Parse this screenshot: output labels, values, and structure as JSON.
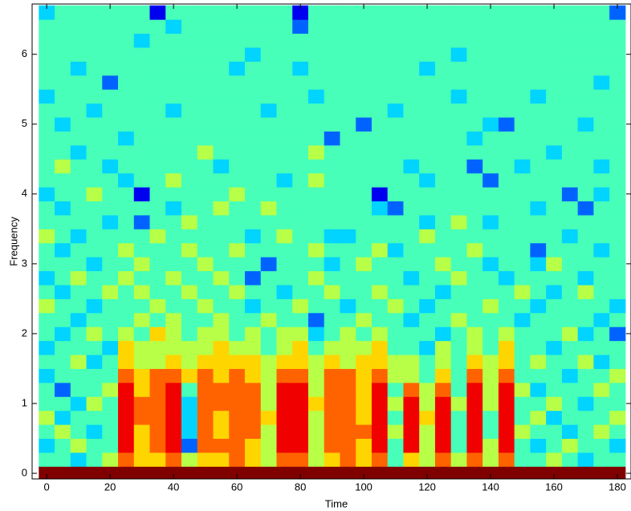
{
  "chart_data": {
    "type": "heatmap",
    "xlabel": "Time",
    "ylabel": "Frequency",
    "x": [
      0,
      5,
      10,
      15,
      20,
      25,
      30,
      35,
      40,
      45,
      50,
      55,
      60,
      65,
      70,
      75,
      80,
      85,
      90,
      95,
      100,
      105,
      110,
      115,
      120,
      125,
      130,
      135,
      140,
      145,
      150,
      155,
      160,
      165,
      170,
      175,
      180
    ],
    "y": [
      0,
      0.2,
      0.4,
      0.6,
      0.8,
      1,
      1.2,
      1.4,
      1.6,
      1.8,
      2,
      2.2,
      2.4,
      2.6,
      2.8,
      3,
      3.2,
      3.4,
      3.6,
      3.8,
      4,
      4.2,
      4.4,
      4.6,
      4.8,
      5,
      5.2,
      5.4,
      5.6,
      5.8,
      6,
      6.2,
      6.4,
      6.6
    ],
    "zlim": [
      0,
      9
    ],
    "colormap": "jet",
    "z": [
      [
        9,
        9,
        9,
        9,
        9,
        9,
        9,
        9,
        9,
        9,
        9,
        9,
        9,
        9,
        9,
        9,
        9,
        9,
        9,
        9,
        9,
        9,
        9,
        9,
        9,
        9,
        9,
        9,
        9,
        9,
        9,
        9,
        9,
        9,
        9,
        9,
        9
      ],
      [
        4,
        4,
        3,
        4,
        5,
        7,
        6,
        6,
        7,
        5,
        6,
        6,
        7,
        6,
        5,
        7,
        7,
        5,
        6,
        7,
        6,
        7,
        4,
        6,
        5,
        7,
        5,
        7,
        5,
        7,
        4,
        4,
        5,
        4,
        3,
        4,
        4
      ],
      [
        3,
        4,
        5,
        4,
        4,
        8,
        6,
        7,
        8,
        2,
        7,
        7,
        7,
        6,
        5,
        8,
        8,
        5,
        7,
        7,
        6,
        8,
        4,
        8,
        5,
        8,
        4,
        8,
        5,
        8,
        4,
        3,
        4,
        5,
        4,
        4,
        3
      ],
      [
        4,
        5,
        4,
        3,
        4,
        8,
        6,
        7,
        8,
        3,
        7,
        6,
        7,
        7,
        5,
        8,
        8,
        5,
        7,
        7,
        7,
        8,
        5,
        8,
        5,
        8,
        4,
        8,
        4,
        8,
        5,
        4,
        4,
        3,
        4,
        5,
        4
      ],
      [
        5,
        3,
        4,
        4,
        4,
        8,
        7,
        7,
        8,
        3,
        7,
        6,
        7,
        7,
        6,
        8,
        8,
        5,
        7,
        7,
        6,
        8,
        4,
        8,
        6,
        8,
        4,
        8,
        4,
        8,
        4,
        5,
        3,
        4,
        4,
        4,
        5
      ],
      [
        4,
        4,
        3,
        5,
        4,
        8,
        7,
        7,
        8,
        3,
        7,
        7,
        7,
        7,
        5,
        8,
        8,
        6,
        7,
        7,
        6,
        8,
        5,
        8,
        5,
        8,
        5,
        8,
        5,
        8,
        4,
        4,
        5,
        4,
        3,
        4,
        4
      ],
      [
        4,
        2,
        4,
        4,
        5,
        8,
        6,
        7,
        8,
        4,
        7,
        7,
        7,
        7,
        5,
        8,
        8,
        5,
        7,
        7,
        6,
        8,
        4,
        7,
        5,
        7,
        4,
        8,
        5,
        8,
        5,
        3,
        4,
        4,
        4,
        5,
        4
      ],
      [
        3,
        4,
        4,
        4,
        4,
        7,
        6,
        7,
        7,
        6,
        7,
        6,
        7,
        6,
        5,
        7,
        7,
        5,
        7,
        7,
        6,
        7,
        5,
        5,
        4,
        6,
        4,
        7,
        5,
        7,
        4,
        4,
        4,
        3,
        4,
        4,
        5
      ],
      [
        4,
        4,
        5,
        3,
        4,
        6,
        5,
        5,
        6,
        5,
        6,
        6,
        6,
        6,
        5,
        6,
        6,
        5,
        6,
        5,
        6,
        6,
        5,
        5,
        4,
        5,
        4,
        6,
        5,
        6,
        4,
        5,
        4,
        4,
        5,
        3,
        4
      ],
      [
        3,
        4,
        4,
        4,
        3,
        6,
        5,
        5,
        5,
        5,
        5,
        6,
        5,
        5,
        4,
        5,
        6,
        4,
        5,
        5,
        5,
        6,
        4,
        4,
        3,
        5,
        4,
        5,
        4,
        6,
        4,
        4,
        3,
        4,
        4,
        4,
        4
      ],
      [
        4,
        3,
        4,
        5,
        4,
        5,
        4,
        6,
        5,
        4,
        5,
        5,
        4,
        5,
        4,
        5,
        5,
        3,
        4,
        5,
        4,
        5,
        4,
        4,
        4,
        3,
        4,
        5,
        4,
        5,
        4,
        4,
        4,
        5,
        3,
        4,
        2
      ],
      [
        4,
        4,
        3,
        4,
        4,
        4,
        5,
        4,
        5,
        4,
        4,
        5,
        4,
        4,
        5,
        4,
        4,
        2,
        4,
        4,
        5,
        4,
        4,
        3,
        4,
        4,
        5,
        4,
        4,
        4,
        3,
        4,
        4,
        4,
        4,
        3,
        4
      ],
      [
        5,
        4,
        4,
        3,
        4,
        4,
        4,
        5,
        4,
        4,
        5,
        4,
        4,
        3,
        4,
        4,
        5,
        4,
        4,
        3,
        4,
        4,
        5,
        4,
        3,
        4,
        4,
        4,
        5,
        4,
        4,
        3,
        4,
        4,
        4,
        4,
        3
      ],
      [
        4,
        3,
        4,
        4,
        5,
        4,
        5,
        4,
        4,
        5,
        4,
        4,
        5,
        4,
        4,
        3,
        4,
        4,
        5,
        4,
        4,
        5,
        4,
        4,
        4,
        3,
        4,
        4,
        4,
        4,
        5,
        4,
        3,
        4,
        5,
        4,
        4
      ],
      [
        3,
        4,
        5,
        4,
        4,
        5,
        4,
        4,
        5,
        4,
        4,
        5,
        4,
        2,
        4,
        4,
        4,
        5,
        4,
        4,
        4,
        4,
        4,
        3,
        4,
        4,
        5,
        4,
        4,
        3,
        4,
        4,
        4,
        4,
        3,
        4,
        4
      ],
      [
        4,
        4,
        4,
        3,
        4,
        4,
        5,
        4,
        4,
        4,
        5,
        4,
        4,
        4,
        2,
        4,
        4,
        4,
        3,
        4,
        5,
        4,
        4,
        4,
        4,
        5,
        4,
        4,
        3,
        4,
        4,
        3,
        5,
        4,
        4,
        4,
        4
      ],
      [
        4,
        3,
        4,
        4,
        4,
        5,
        4,
        4,
        4,
        5,
        4,
        4,
        5,
        4,
        4,
        4,
        4,
        5,
        4,
        4,
        4,
        5,
        3,
        4,
        4,
        4,
        4,
        5,
        4,
        4,
        4,
        2,
        4,
        4,
        4,
        3,
        4
      ],
      [
        5,
        4,
        3,
        4,
        4,
        4,
        4,
        5,
        4,
        4,
        4,
        4,
        4,
        3,
        4,
        5,
        4,
        4,
        3,
        3,
        4,
        4,
        4,
        4,
        5,
        4,
        4,
        4,
        4,
        4,
        4,
        4,
        4,
        3,
        4,
        4,
        4
      ],
      [
        4,
        4,
        4,
        4,
        3,
        4,
        2,
        4,
        4,
        5,
        4,
        4,
        4,
        4,
        4,
        4,
        4,
        4,
        4,
        4,
        4,
        4,
        4,
        4,
        3,
        4,
        5,
        4,
        3,
        4,
        4,
        4,
        4,
        4,
        4,
        4,
        4
      ],
      [
        4,
        3,
        4,
        4,
        4,
        4,
        4,
        4,
        3,
        4,
        4,
        5,
        4,
        4,
        5,
        4,
        4,
        4,
        4,
        4,
        4,
        3,
        2,
        4,
        4,
        4,
        4,
        4,
        4,
        4,
        4,
        3,
        4,
        4,
        2,
        4,
        4
      ],
      [
        3,
        4,
        4,
        5,
        4,
        4,
        1,
        4,
        4,
        4,
        4,
        4,
        5,
        4,
        4,
        4,
        4,
        4,
        4,
        4,
        4,
        1,
        4,
        4,
        4,
        4,
        4,
        4,
        4,
        4,
        4,
        4,
        4,
        2,
        4,
        3,
        4
      ],
      [
        4,
        4,
        4,
        4,
        4,
        3,
        4,
        4,
        5,
        4,
        4,
        4,
        4,
        4,
        4,
        3,
        4,
        5,
        4,
        4,
        4,
        4,
        4,
        4,
        3,
        4,
        4,
        4,
        2,
        4,
        4,
        4,
        4,
        4,
        4,
        4,
        4
      ],
      [
        4,
        5,
        4,
        4,
        3,
        4,
        4,
        4,
        4,
        4,
        4,
        3,
        4,
        4,
        4,
        4,
        4,
        4,
        4,
        4,
        4,
        4,
        4,
        3,
        4,
        4,
        4,
        2,
        4,
        4,
        3,
        4,
        4,
        4,
        4,
        3,
        4
      ],
      [
        4,
        4,
        3,
        4,
        4,
        4,
        4,
        4,
        4,
        4,
        5,
        4,
        4,
        4,
        4,
        4,
        4,
        5,
        4,
        4,
        4,
        4,
        4,
        4,
        4,
        4,
        4,
        4,
        4,
        4,
        4,
        4,
        3,
        4,
        4,
        4,
        4
      ],
      [
        4,
        4,
        4,
        4,
        4,
        3,
        4,
        4,
        4,
        4,
        4,
        4,
        4,
        4,
        4,
        4,
        4,
        4,
        2,
        4,
        4,
        4,
        4,
        4,
        4,
        4,
        4,
        3,
        4,
        4,
        4,
        4,
        4,
        4,
        4,
        4,
        4
      ],
      [
        4,
        3,
        4,
        4,
        4,
        4,
        4,
        4,
        4,
        4,
        4,
        4,
        4,
        4,
        4,
        4,
        4,
        4,
        4,
        4,
        2,
        4,
        4,
        4,
        4,
        4,
        4,
        4,
        3,
        2,
        4,
        4,
        4,
        4,
        3,
        4,
        4
      ],
      [
        4,
        4,
        4,
        3,
        4,
        4,
        4,
        4,
        3,
        4,
        4,
        4,
        4,
        4,
        3,
        4,
        4,
        4,
        4,
        4,
        4,
        4,
        3,
        4,
        4,
        4,
        4,
        4,
        4,
        4,
        4,
        4,
        4,
        4,
        4,
        4,
        4
      ],
      [
        3,
        4,
        4,
        4,
        4,
        4,
        4,
        4,
        4,
        4,
        4,
        4,
        4,
        4,
        4,
        4,
        4,
        3,
        4,
        4,
        4,
        4,
        4,
        4,
        4,
        4,
        3,
        4,
        4,
        4,
        4,
        3,
        4,
        4,
        4,
        4,
        4
      ],
      [
        4,
        4,
        4,
        4,
        2,
        4,
        4,
        4,
        4,
        4,
        4,
        4,
        4,
        4,
        4,
        4,
        4,
        4,
        4,
        4,
        4,
        4,
        4,
        4,
        4,
        4,
        4,
        4,
        4,
        4,
        4,
        4,
        4,
        4,
        4,
        3,
        4
      ],
      [
        4,
        4,
        3,
        4,
        4,
        4,
        4,
        4,
        4,
        4,
        4,
        4,
        3,
        4,
        4,
        4,
        3,
        4,
        4,
        4,
        4,
        4,
        4,
        4,
        3,
        4,
        4,
        4,
        4,
        4,
        4,
        4,
        4,
        4,
        4,
        4,
        4
      ],
      [
        4,
        4,
        4,
        4,
        4,
        4,
        4,
        4,
        4,
        4,
        4,
        4,
        4,
        3,
        4,
        4,
        4,
        4,
        4,
        4,
        4,
        4,
        4,
        4,
        4,
        4,
        3,
        4,
        4,
        4,
        4,
        4,
        4,
        4,
        4,
        4,
        4
      ],
      [
        4,
        4,
        4,
        4,
        4,
        4,
        3,
        4,
        4,
        4,
        4,
        4,
        4,
        4,
        4,
        4,
        4,
        4,
        4,
        4,
        4,
        4,
        4,
        4,
        4,
        4,
        4,
        4,
        4,
        4,
        4,
        4,
        4,
        4,
        4,
        4,
        4
      ],
      [
        4,
        4,
        4,
        4,
        4,
        4,
        4,
        4,
        3,
        4,
        4,
        4,
        4,
        4,
        4,
        4,
        2,
        4,
        4,
        4,
        4,
        4,
        4,
        4,
        4,
        4,
        4,
        4,
        4,
        4,
        4,
        4,
        4,
        4,
        4,
        4,
        4
      ],
      [
        3,
        4,
        4,
        4,
        4,
        4,
        4,
        1,
        4,
        4,
        4,
        4,
        4,
        4,
        4,
        4,
        1,
        4,
        4,
        4,
        4,
        4,
        4,
        4,
        4,
        4,
        4,
        4,
        4,
        4,
        4,
        4,
        4,
        4,
        4,
        4,
        2
      ]
    ],
    "xlim": [
      -4.6,
      184.3
    ],
    "ylim": [
      -0.08,
      6.72
    ],
    "xticks": [
      0,
      20,
      40,
      60,
      80,
      100,
      120,
      140,
      160,
      180
    ],
    "yticks": [
      0,
      1,
      2,
      3,
      4,
      5,
      6
    ]
  }
}
